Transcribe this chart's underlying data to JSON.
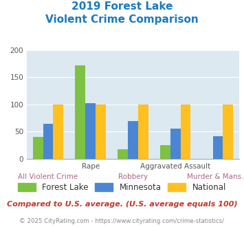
{
  "title_line1": "2019 Forest Lake",
  "title_line2": "Violent Crime Comparison",
  "categories_top": [
    "",
    "Rape",
    "",
    "Aggravated Assault",
    ""
  ],
  "categories_bot": [
    "All Violent Crime",
    "",
    "Robbery",
    "",
    "Murder & Mans..."
  ],
  "forest_lake": [
    40,
    172,
    18,
    25,
    0
  ],
  "minnesota": [
    64,
    102,
    69,
    55,
    42
  ],
  "national": [
    100,
    100,
    100,
    100,
    100
  ],
  "color_forest_lake": "#7dc242",
  "color_minnesota": "#4a86d4",
  "color_national": "#ffc020",
  "bg_color": "#dce9f0",
  "title_color": "#1a7abf",
  "ylim": [
    0,
    200
  ],
  "yticks": [
    0,
    50,
    100,
    150,
    200
  ],
  "legend_labels": [
    "Forest Lake",
    "Minnesota",
    "National"
  ],
  "footnote1": "Compared to U.S. average. (U.S. average equals 100)",
  "footnote2": "© 2025 CityRating.com - https://www.cityrating.com/crime-statistics/",
  "footnote1_color": "#c0392b",
  "footnote2_color": "#888888",
  "xtick_top_color": "#555555",
  "xtick_bot_color": "#aa6688"
}
